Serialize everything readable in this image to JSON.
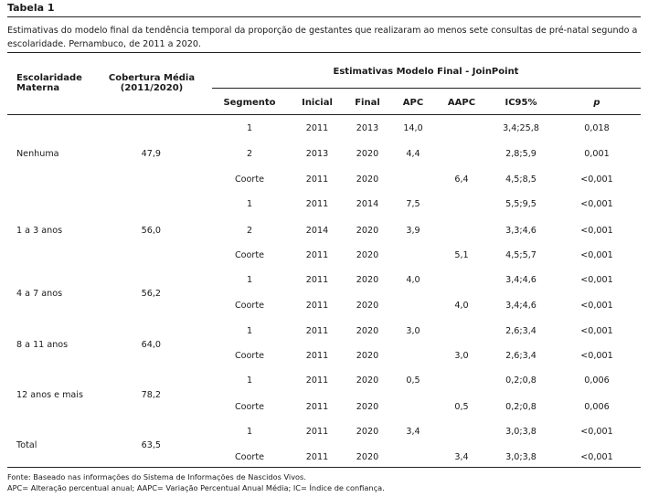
{
  "title": "Tabela 1",
  "caption": "Estimativas do modelo final da tendência temporal da proporção de gestantes que realizaram ao menos sete consultas de pré-natal segundo a escolaridade. Pernambuco, de 2011 a 2020.",
  "headers": {
    "escolaridade_1": "Escolaridade",
    "escolaridade_2": "Materna",
    "cobertura_1": "Cobertura Média",
    "cobertura_2": "(2011/2020)",
    "group": "Estimativas Modelo Final - JoinPoint",
    "segmento": "Segmento",
    "inicial": "Inicial",
    "final": "Final",
    "apc": "APC",
    "aapc": "AAPC",
    "ic": "IC95%",
    "p": "p"
  },
  "groups": [
    {
      "name": "Nenhuma",
      "cobertura": "47,9"
    },
    {
      "name": "1 a 3 anos",
      "cobertura": "56,0"
    },
    {
      "name": "4 a 7 anos",
      "cobertura": "56,2"
    },
    {
      "name": "8 a 11 anos",
      "cobertura": "64,0"
    },
    {
      "name": "12 anos e mais",
      "cobertura": "78,2"
    },
    {
      "name": "Total",
      "cobertura": "63,5"
    }
  ],
  "rows": [
    {
      "segmento": "1",
      "inicial": "2011",
      "final": "2013",
      "apc": "14,0",
      "aapc": "",
      "ic": "3,4;25,8",
      "p": "0,018"
    },
    {
      "segmento": "2",
      "inicial": "2013",
      "final": "2020",
      "apc": "4,4",
      "aapc": "",
      "ic": "2,8;5,9",
      "p": "0,001"
    },
    {
      "segmento": "Coorte",
      "inicial": "2011",
      "final": "2020",
      "apc": "",
      "aapc": "6,4",
      "ic": "4,5;8,5",
      "p": "<0,001"
    },
    {
      "segmento": "1",
      "inicial": "2011",
      "final": "2014",
      "apc": "7,5",
      "aapc": "",
      "ic": "5,5;9,5",
      "p": "<0,001"
    },
    {
      "segmento": "2",
      "inicial": "2014",
      "final": "2020",
      "apc": "3,9",
      "aapc": "",
      "ic": "3,3;4,6",
      "p": "<0,001"
    },
    {
      "segmento": "Coorte",
      "inicial": "2011",
      "final": "2020",
      "apc": "",
      "aapc": "5,1",
      "ic": "4,5;5,7",
      "p": "<0,001"
    },
    {
      "segmento": "1",
      "inicial": "2011",
      "final": "2020",
      "apc": "4,0",
      "aapc": "",
      "ic": "3,4;4,6",
      "p": "<0,001"
    },
    {
      "segmento": "Coorte",
      "inicial": "2011",
      "final": "2020",
      "apc": "",
      "aapc": "4,0",
      "ic": "3,4;4,6",
      "p": "<0,001"
    },
    {
      "segmento": "1",
      "inicial": "2011",
      "final": "2020",
      "apc": "3,0",
      "aapc": "",
      "ic": "2,6;3,4",
      "p": "<0,001"
    },
    {
      "segmento": "Coorte",
      "inicial": "2011",
      "final": "2020",
      "apc": "",
      "aapc": "3,0",
      "ic": "2,6;3,4",
      "p": "<0,001"
    },
    {
      "segmento": "1",
      "inicial": "2011",
      "final": "2020",
      "apc": "0,5",
      "aapc": "",
      "ic": "0,2;0,8",
      "p": "0,006"
    },
    {
      "segmento": "Coorte",
      "inicial": "2011",
      "final": "2020",
      "apc": "",
      "aapc": "0,5",
      "ic": "0,2;0,8",
      "p": "0,006"
    },
    {
      "segmento": "1",
      "inicial": "2011",
      "final": "2020",
      "apc": "3,4",
      "aapc": "",
      "ic": "3,0;3,8",
      "p": "<0,001"
    },
    {
      "segmento": "Coorte",
      "inicial": "2011",
      "final": "2020",
      "apc": "",
      "aapc": "3,4",
      "ic": "3,0;3,8",
      "p": "<0,001"
    }
  ],
  "footnotes": {
    "fonte": "Fonte: Baseado nas informações do Sistema de Informações de Nascidos Vivos.",
    "abrev": "APC= Alteração percentual anual; AAPC= Variação Percentual Anual Média; IC= Índice de confiança."
  }
}
